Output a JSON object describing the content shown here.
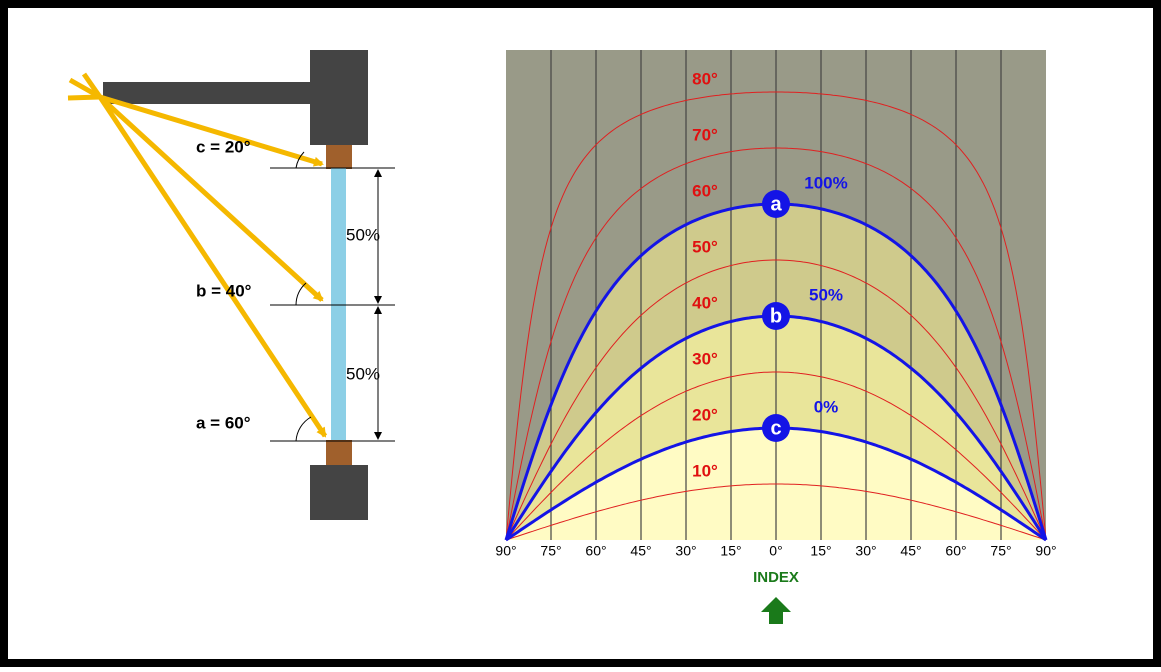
{
  "left_diagram": {
    "ray_labels": [
      "c = 20°",
      "b = 40°",
      "a = 60°"
    ],
    "span_labels": [
      "50%",
      "50%"
    ]
  },
  "chart": {
    "altitude_labels": [
      "10°",
      "20°",
      "30°",
      "40°",
      "50°",
      "60°",
      "70°",
      "80°"
    ],
    "markers": [
      {
        "letter": "a",
        "percent": "100%"
      },
      {
        "letter": "b",
        "percent": "50%"
      },
      {
        "letter": "c",
        "percent": "0%"
      }
    ],
    "axis_labels": [
      "90°",
      "75°",
      "60°",
      "45°",
      "30°",
      "15°",
      "0°",
      "15°",
      "30°",
      "45°",
      "60°",
      "75°",
      "90°"
    ],
    "index_label": "INDEX"
  }
}
